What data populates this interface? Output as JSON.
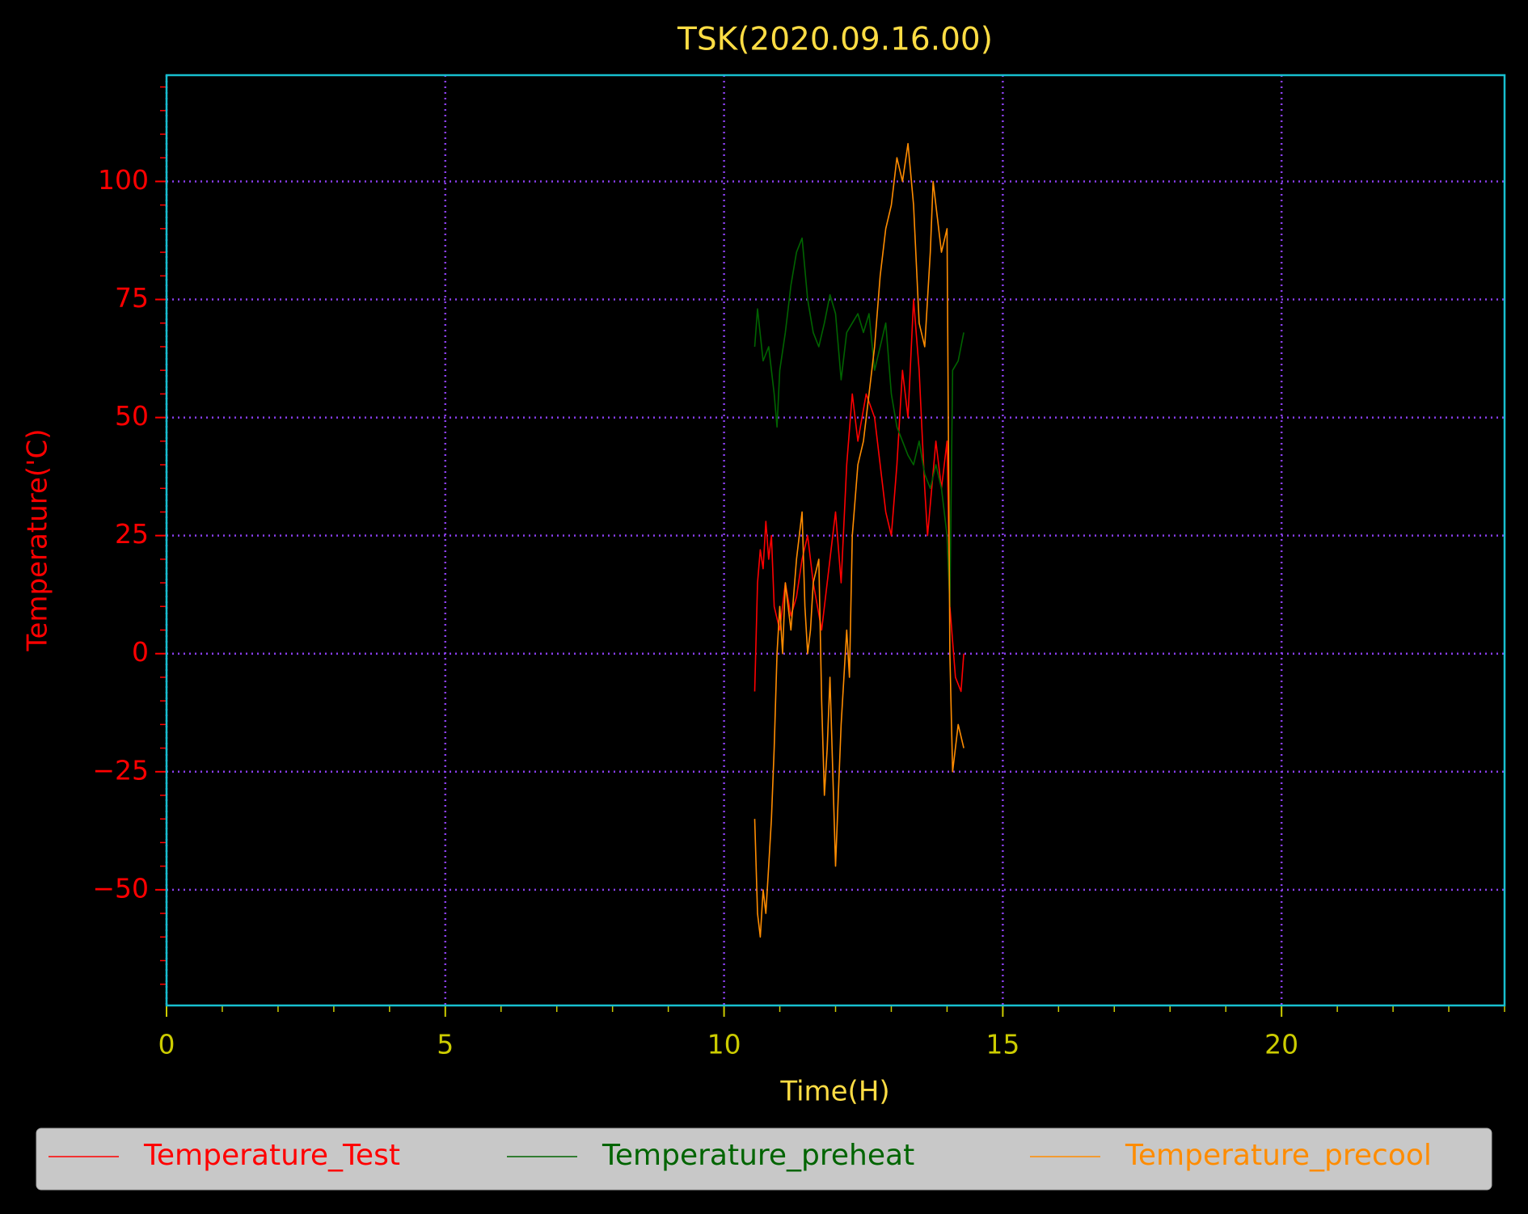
{
  "chart_data": {
    "type": "line",
    "title": "TSK(2020.09.16.00)",
    "x_label": "Time(H)",
    "y_label": "Temperature('C)",
    "xlim": [
      0,
      24
    ],
    "ylim": [
      -74.5,
      122.5
    ],
    "xticks": [
      0,
      5,
      10,
      15,
      20
    ],
    "yticks": [
      -50,
      -25,
      0,
      25,
      50,
      75,
      100
    ],
    "xminorticks": [
      0,
      1,
      2,
      3,
      4,
      5,
      6,
      7,
      8,
      9,
      10,
      11,
      12,
      13,
      14,
      15,
      16,
      17,
      18,
      19,
      20,
      21,
      22,
      23,
      24
    ],
    "yminorticks": [
      -70,
      -65,
      -60,
      -55,
      -50,
      -45,
      -40,
      -35,
      -30,
      -25,
      -20,
      -15,
      -10,
      -5,
      0,
      5,
      10,
      15,
      20,
      25,
      30,
      35,
      40,
      45,
      50,
      55,
      60,
      65,
      70,
      75,
      80,
      85,
      90,
      95,
      100,
      105,
      110,
      115,
      120
    ],
    "grid": true,
    "legend": "bottom",
    "series": [
      {
        "name": "Temperature_Test",
        "color": "#ff0000",
        "x": [
          10.55,
          10.6,
          10.65,
          10.7,
          10.75,
          10.8,
          10.85,
          10.9,
          11.0,
          11.1,
          11.2,
          11.3,
          11.4,
          11.5,
          11.6,
          11.75,
          11.9,
          12.0,
          12.1,
          12.2,
          12.3,
          12.4,
          12.55,
          12.7,
          12.8,
          12.9,
          13.0,
          13.1,
          13.2,
          13.3,
          13.4,
          13.5,
          13.6,
          13.65,
          13.8,
          13.9,
          14.0,
          14.05,
          14.15,
          14.25,
          14.3
        ],
        "values": [
          -8,
          15,
          22,
          18,
          28,
          20,
          25,
          10,
          5,
          15,
          8,
          12,
          20,
          25,
          15,
          5,
          20,
          30,
          15,
          40,
          55,
          45,
          55,
          50,
          40,
          30,
          25,
          40,
          60,
          50,
          75,
          60,
          35,
          25,
          45,
          35,
          45,
          10,
          -5,
          -8,
          0
        ]
      },
      {
        "name": "Temperature_preheat",
        "color": "#006400",
        "x": [
          10.55,
          10.6,
          10.7,
          10.8,
          10.9,
          10.95,
          11.0,
          11.1,
          11.2,
          11.3,
          11.4,
          11.5,
          11.6,
          11.7,
          11.8,
          11.9,
          12.0,
          12.1,
          12.2,
          12.3,
          12.4,
          12.5,
          12.6,
          12.7,
          12.8,
          12.9,
          13.0,
          13.1,
          13.2,
          13.3,
          13.4,
          13.5,
          13.6,
          13.7,
          13.8,
          13.9,
          14.0,
          14.05,
          14.1,
          14.2,
          14.3
        ],
        "values": [
          65,
          73,
          62,
          65,
          55,
          48,
          60,
          68,
          78,
          85,
          88,
          75,
          68,
          65,
          70,
          76,
          72,
          58,
          68,
          70,
          72,
          68,
          72,
          60,
          65,
          70,
          55,
          48,
          45,
          42,
          40,
          45,
          38,
          35,
          40,
          35,
          25,
          10,
          60,
          62,
          68
        ]
      },
      {
        "name": "Temperature_precool",
        "color": "#ff8c00",
        "x": [
          10.55,
          10.6,
          10.65,
          10.7,
          10.75,
          10.8,
          10.85,
          10.9,
          10.95,
          11.0,
          11.05,
          11.1,
          11.2,
          11.3,
          11.4,
          11.45,
          11.5,
          11.55,
          11.6,
          11.7,
          11.75,
          11.8,
          11.85,
          11.9,
          12.0,
          12.05,
          12.1,
          12.2,
          12.25,
          12.3,
          12.4,
          12.5,
          12.6,
          12.7,
          12.8,
          12.9,
          13.0,
          13.1,
          13.2,
          13.3,
          13.4,
          13.5,
          13.6,
          13.7,
          13.75,
          13.8,
          13.9,
          14.0,
          14.05,
          14.1,
          14.2,
          14.3
        ],
        "values": [
          -35,
          -55,
          -60,
          -50,
          -55,
          -45,
          -35,
          -20,
          0,
          10,
          0,
          15,
          5,
          20,
          30,
          10,
          0,
          5,
          15,
          20,
          -10,
          -30,
          -20,
          -5,
          -45,
          -30,
          -15,
          5,
          -5,
          25,
          40,
          45,
          55,
          65,
          80,
          90,
          95,
          105,
          100,
          108,
          95,
          70,
          65,
          85,
          100,
          95,
          85,
          90,
          0,
          -25,
          -15,
          -20
        ]
      }
    ]
  }
}
